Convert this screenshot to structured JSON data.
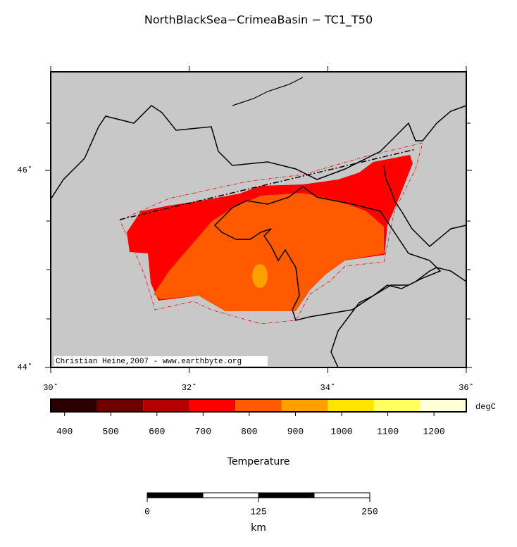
{
  "title": "NorthBlackSea−CrimeaBasin − TC1_T50",
  "map": {
    "xlim": [
      30,
      36
    ],
    "ylim": [
      44,
      47
    ],
    "xticks": [
      {
        "value": 30,
        "label": "30˚"
      },
      {
        "value": 32,
        "label": "32˚"
      },
      {
        "value": 34,
        "label": "34˚"
      },
      {
        "value": 36,
        "label": "36˚"
      }
    ],
    "yticks": [
      {
        "value": 44,
        "label": "44˚"
      },
      {
        "value": 46,
        "label": "46˚"
      }
    ],
    "credit": "Christian Heine,2007 - www.earthbyte.org"
  },
  "colorbar": {
    "label": "Temperature",
    "unit": "degC",
    "lim": [
      370,
      1270
    ],
    "bins": [
      370,
      470,
      570,
      670,
      770,
      870,
      970,
      1070,
      1170,
      1270
    ],
    "colors": [
      "#2a0000",
      "#6e0000",
      "#b40000",
      "#ff0000",
      "#ff5a00",
      "#ff9f00",
      "#ffe400",
      "#ffff60",
      "#ffffd8"
    ],
    "ticks": [
      400,
      500,
      600,
      700,
      800,
      900,
      1000,
      1100,
      1200
    ]
  },
  "scalebar": {
    "unit": "km",
    "lim": [
      0,
      250
    ],
    "ticks": [
      0,
      125,
      250
    ],
    "segments": [
      0,
      62.5,
      125,
      187.5,
      250
    ]
  }
}
